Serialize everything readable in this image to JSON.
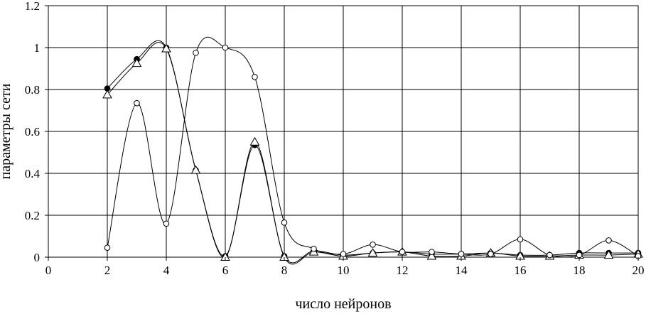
{
  "chart_data": {
    "type": "line",
    "xlabel": "число нейронов",
    "ylabel": "параметры сети",
    "xlim": [
      0,
      20
    ],
    "ylim": [
      0,
      1.2
    ],
    "xticks": [
      0,
      2,
      4,
      6,
      8,
      10,
      12,
      14,
      16,
      18,
      20
    ],
    "yticks": [
      0,
      0.2,
      0.4,
      0.6,
      0.8,
      1,
      1.2
    ],
    "grid": true,
    "legend": "none",
    "series": [
      {
        "marker": "filled-circle",
        "x": [
          2,
          3,
          4,
          5,
          6,
          7,
          8,
          9,
          10,
          11,
          12,
          13,
          14,
          15,
          16,
          17,
          18,
          19,
          20
        ],
        "y": [
          0.805,
          0.945,
          1.0,
          0.415,
          0.005,
          0.535,
          0.005,
          0.03,
          0.01,
          0.02,
          0.025,
          0.015,
          0.015,
          0.02,
          0.01,
          0.01,
          0.02,
          0.02,
          0.02
        ]
      },
      {
        "marker": "open-triangle",
        "x": [
          2,
          3,
          4,
          5,
          6,
          7,
          8,
          9,
          10,
          11,
          12,
          13,
          14,
          15,
          16,
          17,
          18,
          19,
          20
        ],
        "y": [
          0.775,
          0.925,
          0.995,
          0.415,
          0.0,
          0.55,
          0.0,
          0.025,
          0.005,
          0.02,
          0.025,
          0.005,
          0.005,
          0.02,
          0.005,
          0.005,
          0.01,
          0.01,
          0.015
        ]
      },
      {
        "marker": "open-circle",
        "x": [
          2,
          3,
          4,
          5,
          6,
          7,
          8,
          9,
          10,
          11,
          12,
          13,
          14,
          15,
          16,
          17,
          18,
          19,
          20
        ],
        "y": [
          0.045,
          0.735,
          0.16,
          0.975,
          1.0,
          0.86,
          0.165,
          0.04,
          0.015,
          0.06,
          0.025,
          0.025,
          0.015,
          0.015,
          0.085,
          0.01,
          0.01,
          0.08,
          0.005
        ]
      }
    ]
  }
}
